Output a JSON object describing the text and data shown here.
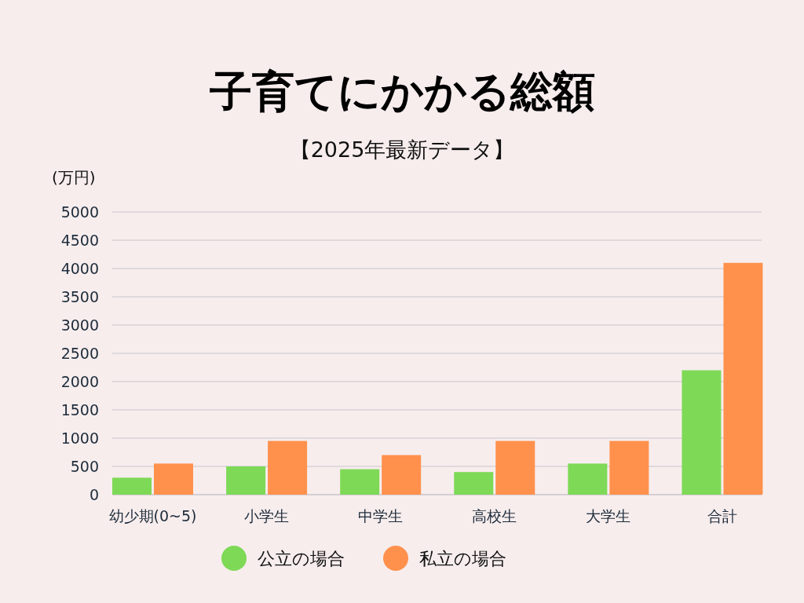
{
  "chart_data": {
    "type": "bar",
    "title": "子育てにかかる総額",
    "subtitle": "【2025年最新データ】",
    "ylabel": "(万円)",
    "categories": [
      "幼少期(0~5)",
      "小学生",
      "中学生",
      "高校生",
      "大学生",
      "合計"
    ],
    "series": [
      {
        "name": "公立の場合",
        "color": "#7ed957",
        "values": [
          300,
          500,
          450,
          400,
          550,
          2200
        ]
      },
      {
        "name": "私立の場合",
        "color": "#ff914d",
        "values": [
          550,
          950,
          700,
          950,
          950,
          4100
        ]
      }
    ],
    "ylim": [
      0,
      5000
    ],
    "yticks": [
      0,
      500,
      1000,
      1500,
      2000,
      2500,
      3000,
      3500,
      4000,
      4500,
      5000
    ],
    "grid": "y",
    "legend": "bottom"
  }
}
